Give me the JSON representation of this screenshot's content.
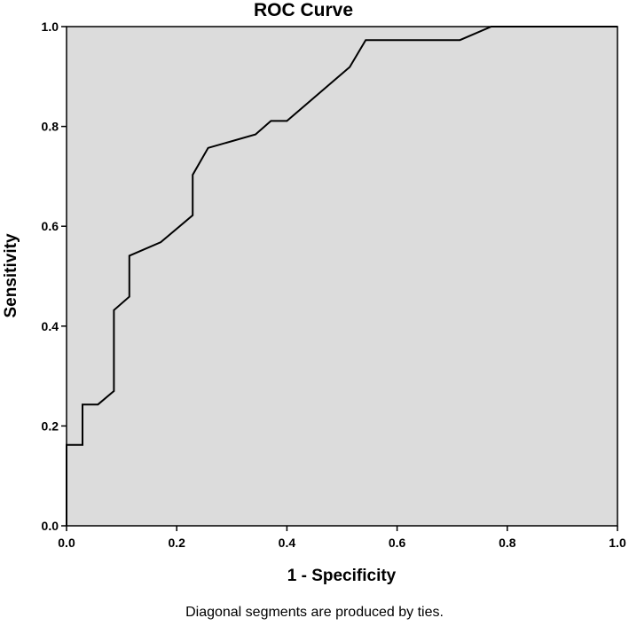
{
  "chart_data": {
    "type": "line",
    "title": "ROC Curve",
    "xlabel": "1 - Specificity",
    "ylabel": "Sensitivity",
    "xlim": [
      0.0,
      1.0
    ],
    "ylim": [
      0.0,
      1.0
    ],
    "x_ticks": [
      "0.0",
      "0.2",
      "0.4",
      "0.6",
      "0.8",
      "1.0"
    ],
    "y_ticks": [
      "0.0",
      "0.2",
      "0.4",
      "0.6",
      "0.8",
      "1.0"
    ],
    "grid": false,
    "background_color": "#dcdcdc",
    "line_color": "#000000",
    "series": [
      {
        "x": [
          0.0,
          0.0,
          0.029,
          0.029,
          0.057,
          0.086,
          0.086,
          0.114,
          0.114,
          0.171,
          0.229,
          0.229,
          0.257,
          0.343,
          0.371,
          0.4,
          0.514,
          0.543,
          0.714,
          0.771,
          1.0
        ],
        "y": [
          0.0,
          0.162,
          0.162,
          0.243,
          0.243,
          0.27,
          0.432,
          0.459,
          0.541,
          0.568,
          0.622,
          0.703,
          0.757,
          0.784,
          0.811,
          0.811,
          0.919,
          0.973,
          0.973,
          1.0,
          1.0
        ]
      }
    ]
  },
  "footnote": "Diagonal segments are produced by ties."
}
